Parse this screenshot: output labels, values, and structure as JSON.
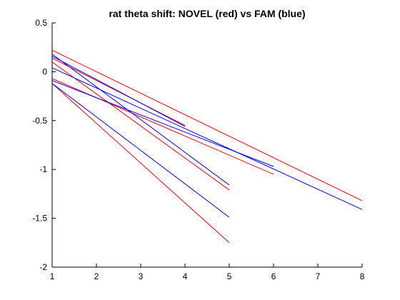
{
  "chart_data": {
    "type": "line",
    "title": "rat theta shift: NOVEL (red) vs FAM (blue)",
    "xlabel": "",
    "ylabel": "",
    "xlim": [
      1,
      8
    ],
    "ylim": [
      -2,
      0.5
    ],
    "xticks": [
      1,
      2,
      3,
      4,
      5,
      6,
      7,
      8
    ],
    "yticks": [
      0.5,
      0,
      -0.5,
      -1,
      -1.5,
      -2
    ],
    "xtick_labels": [
      "1",
      "2",
      "3",
      "4",
      "5",
      "6",
      "7",
      "8"
    ],
    "ytick_labels": [
      "0.5",
      "0",
      "-0.5",
      "-1",
      "-1.5",
      "-2"
    ],
    "grid": false,
    "legend": null,
    "colors": {
      "novel": "#ff0000",
      "fam": "#0000ff",
      "axis": "#000000"
    },
    "series": [
      {
        "group": "novel",
        "x": [
          1,
          8
        ],
        "y": [
          0.22,
          -1.32
        ]
      },
      {
        "group": "novel",
        "x": [
          1,
          6
        ],
        "y": [
          -0.07,
          -1.05
        ]
      },
      {
        "group": "novel",
        "x": [
          1,
          5
        ],
        "y": [
          0.1,
          -1.21
        ]
      },
      {
        "group": "novel",
        "x": [
          1,
          5
        ],
        "y": [
          -0.12,
          -1.75
        ]
      },
      {
        "group": "novel",
        "x": [
          1,
          4
        ],
        "y": [
          0.14,
          -0.55
        ]
      },
      {
        "group": "fam",
        "x": [
          1,
          8
        ],
        "y": [
          0.04,
          -1.41
        ]
      },
      {
        "group": "fam",
        "x": [
          1,
          6
        ],
        "y": [
          -0.09,
          -0.97
        ]
      },
      {
        "group": "fam",
        "x": [
          1,
          5
        ],
        "y": [
          0.18,
          -1.16
        ]
      },
      {
        "group": "fam",
        "x": [
          1,
          5
        ],
        "y": [
          -0.12,
          -1.49
        ]
      },
      {
        "group": "fam",
        "x": [
          1,
          4
        ],
        "y": [
          0.16,
          -0.56
        ]
      }
    ]
  }
}
